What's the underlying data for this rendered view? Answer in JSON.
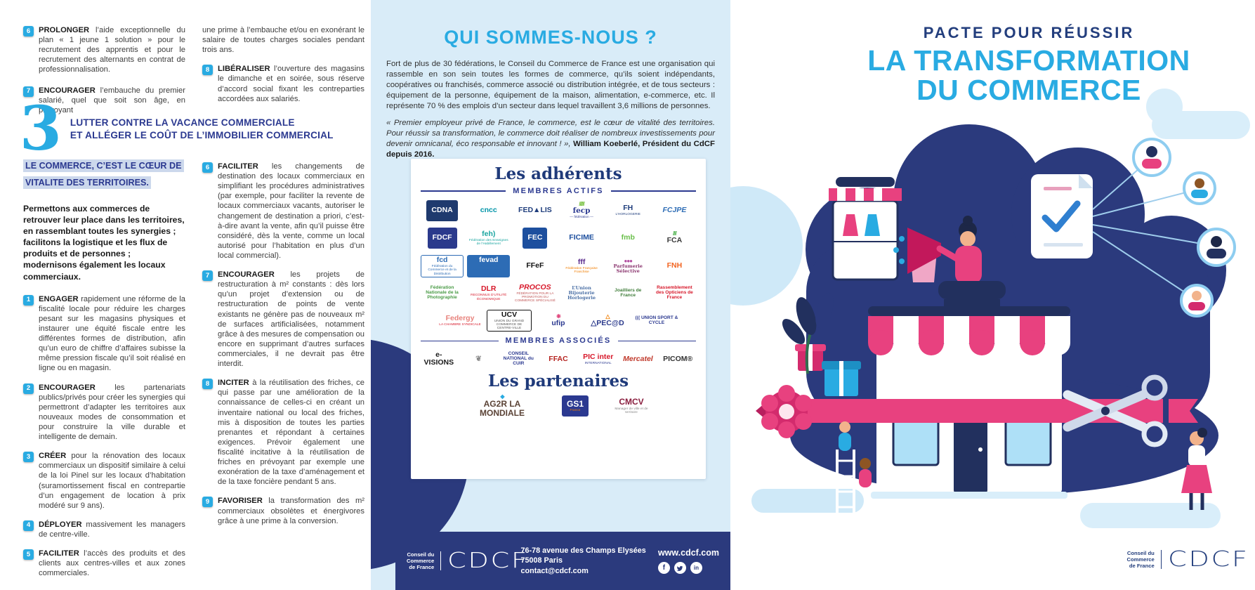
{
  "accent_colors": {
    "cyan": "#29abe2",
    "navy": "#2b3a7d",
    "heading_blue": "#2b3990",
    "pink": "#e8417f",
    "panel_blue": "#d9ecf8"
  },
  "brand": {
    "l1": "Conseil du",
    "l2": "Commerce",
    "l3": "de France",
    "name": "CDCF"
  },
  "left_panel": {
    "items_top_col1": [
      {
        "num": "6",
        "kw": "PROLONGER",
        "text": "l’aide exceptionnelle du plan « 1 jeune 1 solution » pour le recrutement des apprentis et pour le recrutement des alternants en contrat de professionnalisation."
      },
      {
        "num": "7",
        "kw": "ENCOURAGER",
        "text": "l’embauche du premier salarié, quel que soit son âge, en prévoyant"
      }
    ],
    "items_top_col2": [
      {
        "num": "",
        "kw": "",
        "text": "une prime à l’embauche et/ou en exonérant le salaire de toutes charges sociales pendant trois ans."
      },
      {
        "num": "8",
        "kw": "LIBÉRALISER",
        "text": "l’ouverture des magasins le dimanche et en soirée, sous réserve d’accord social fixant les contreparties accordées aux salariés."
      }
    ],
    "section": {
      "number": "3",
      "title1": "LUTTER CONTRE LA VACANCE COMMERCIALE",
      "title2": "ET ALLÉGER LE COÛT DE L’IMMOBILIER COMMERCIAL"
    },
    "highlight": "LE COMMERCE, C’EST LE CŒUR DE VITALITE DES TERRITOIRES.",
    "intro": "Permettons aux commerces de retrouver leur place dans les territoires, en rassemblant toutes les synergies ; facilitons la logistique et les flux de produits et de personnes ; modernisons également les locaux commerciaux.",
    "items_left": [
      {
        "num": "1",
        "kw": "ENGAGER",
        "text": "rapidement une réforme de la fiscalité locale pour réduire les charges pesant sur les magasins physiques et instaurer une équité fiscale entre les différentes formes de distribution, afin qu’un euro de chiffre d’affaires subisse la même pression fiscale qu’il soit réalisé en ligne ou en magasin."
      },
      {
        "num": "2",
        "kw": "ENCOURAGER",
        "text": "les partenariats publics/privés pour créer les synergies qui permettront d’adapter les territoires aux nouveaux modes de consommation et pour construire la ville durable et intelligente de demain."
      },
      {
        "num": "3",
        "kw": "CRÉER",
        "text": "pour la rénovation des locaux commerciaux un dispositif similaire à celui de la loi Pinel sur les locaux d’habitation (suramortissement fiscal en contrepartie d’un engagement de location à prix modéré sur 9 ans)."
      },
      {
        "num": "4",
        "kw": "DÉPLOYER",
        "text": "massivement les managers de centre-ville."
      },
      {
        "num": "5",
        "kw": "FACILITER",
        "text": "l’accès des produits et des clients aux centres-villes et aux zones commerciales."
      }
    ],
    "items_right": [
      {
        "num": "6",
        "kw": "FACILITER",
        "text": "les changements de destination des locaux commerciaux en simplifiant les procédures administratives (par exemple, pour faciliter la revente de locaux commerciaux vacants, autoriser le changement de destination a priori, c’est-à-dire avant la vente, afin qu’il puisse être considéré, dès la vente, comme un local autorisé pour l’habitation en plus d’un local commercial)."
      },
      {
        "num": "7",
        "kw": "ENCOURAGER",
        "text": "les projets de restructuration à m² constants : dès lors qu’un projet d’extension ou de restructuration de points de vente existants ne génère pas de nouveaux m² de surfaces artificialisées, notamment grâce à des mesures de compensation ou encore en supprimant d’autres surfaces commerciales, il ne devrait pas être interdit."
      },
      {
        "num": "8",
        "kw": "INCITER",
        "text": "à la réutilisation des friches, ce qui passe par une amélioration de la connaissance de celles-ci en créant un inventaire national ou local des friches, mis à disposition de toutes les parties prenantes et répondant à certaines exigences. Prévoir également une fiscalité incitative à la réutilisation de friches en prévoyant par exemple une exonération de la taxe d’aménagement et de la taxe foncière pendant 5 ans."
      },
      {
        "num": "9",
        "kw": "FAVORISER",
        "text": "la transformation des m² commerciaux obsolètes et énergivores grâce à une prime à la conversion."
      }
    ]
  },
  "middle_panel": {
    "title": "QUI SOMMES-NOUS ?",
    "para1": "Fort de plus de 30 fédérations, le Conseil du Commerce de France est une organisation qui rassemble en son sein toutes les formes de commerce, qu’ils soient indépendants, coopératives ou franchisés, commerce associé ou distribution intégrée, et de tous secteurs : équipement de la personne, équipement de la maison, alimentation, e-commerce, etc. Il représente 70 % des emplois d’un secteur dans lequel travaillent 3,6 millions de personnes.",
    "quote": "« Premier employeur privé de France, le commerce, est le cœur de vitalité des territoires. Pour réussir sa transformation, le commerce doit réaliser de nombreux investissements pour devenir omnicanal, éco responsable et innovant ! », ",
    "quote_author": "William Koeberlé, Président du CdCF depuis 2016.",
    "adherents_title": "Les adhérents",
    "actifs_label": "MEMBRES ACTIFS",
    "actifs_rows": [
      [
        {
          "t": "CDNA",
          "bg": "#1f3a6e"
        },
        {
          "t": "cncc",
          "c": "#0094a8"
        },
        {
          "t": "FED▲LIS",
          "c": "#1f3d7c"
        },
        {
          "t": "fecp",
          "c": "#2b3990",
          "serif": true,
          "top": "//////",
          "tc": "#7ac143",
          "sub": "— fédération —",
          "sc": "#2b3990"
        },
        {
          "t": "FH",
          "c": "#1f3d7c",
          "sub": "L’HORLOGERIE",
          "sc": "#1f3d7c"
        },
        {
          "t": "FCJPE",
          "c": "#2d6cb5",
          "i": true
        }
      ],
      [
        {
          "t": "FDCF",
          "bg": "#2b3a8c"
        },
        {
          "t": "feh)",
          "c": "#1aa5a0",
          "sub": "Fédération des Enseignes de l’Habillement",
          "sc": "#1aa5a0"
        },
        {
          "t": "FEC",
          "bg": "#1d4f9e"
        },
        {
          "t": "FICIME",
          "c": "#1d4f9e"
        },
        {
          "t": "fmb",
          "c": "#6abf4b"
        },
        {
          "t": "FCA",
          "c": "#3a3a3a",
          "top": "////",
          "tc": "#5cb85c"
        }
      ],
      [
        {
          "t": "fcd",
          "c": "#2d6cb5",
          "box": true,
          "sub": "Fédération du Commerce et de la Distribution",
          "sc": "#2d6cb5"
        },
        {
          "t": "fevad",
          "bg": "#2d6cb5",
          "sub": "Fédération e-commerce et vente à distance",
          "sc": "#2d6cb5"
        },
        {
          "t": "FFeF",
          "c": "#111111"
        },
        {
          "t": "fff",
          "c": "#5b2d8e",
          "sub": "Fédération Française Franchise",
          "sc": "#f07d00"
        },
        {
          "t": "Parfumerie Sélective",
          "c": "#8a356e",
          "serif": true,
          "sm": true,
          "top": "●●●",
          "tc": "#b44fa0"
        },
        {
          "t": "FNH",
          "c": "#f26522"
        }
      ],
      [
        {
          "t": "Fédération Nationale de la Photographie",
          "c": "#4a9b46",
          "sm": true
        },
        {
          "t": "DLR",
          "c": "#d7182a",
          "sub": "RECONNUS D’UTILITÉ ÉCONOMIQUE",
          "sc": "#d7182a"
        },
        {
          "t": "PROCOS",
          "c": "#d7182a",
          "i": true,
          "sub": "FÉDÉRATION POUR LA PROMOTION DU COMMERCE SPÉCIALISÉ",
          "sc": "#c05555"
        },
        {
          "t": "L’Union Bijouterie Horlogerie",
          "c": "#4a6fa5",
          "serif": true,
          "sm": true
        },
        {
          "t": "Joailliers de France",
          "c": "#3f7d3a",
          "sm": true
        },
        {
          "t": "Rassemblement des Opticiens de France",
          "c": "#d7182a",
          "sm": true
        }
      ],
      [
        {
          "t": "Federgy",
          "c": "#e8837d",
          "sub": "LA CHAMBRE SYNDICALE",
          "sc": "#d7182a"
        },
        {
          "t": "UCV",
          "c": "#111111",
          "box": true,
          "sub": "UNION DU GRAND COMMERCE DE CENTRE-VILLE",
          "sc": "#555555"
        },
        {
          "t": "ufip",
          "c": "#2b3990",
          "top": "❋",
          "tc": "#e0457b"
        },
        {
          "t": "△PEC@D",
          "c": "#2b3a8c",
          "top": "△",
          "tc": "#f07d00"
        },
        {
          "t": "((( UNION SPORT & CYCLE",
          "c": "#2b3990",
          "sm": true
        }
      ]
    ],
    "associes_label": "MEMBRES ASSOCIÉS",
    "associes_row": [
      {
        "t": "e-VISIONS",
        "c": "#1a1a1a"
      },
      {
        "t": "❦",
        "c": "#8a8a8a"
      },
      {
        "t": "CONSEIL NATIONAL du CUIR",
        "c": "#2b3990",
        "sm": true
      },
      {
        "t": "FFAC",
        "c": "#b5231f"
      },
      {
        "t": "PIC inter",
        "c": "#d7182a",
        "sub": "INTERNATIONAL",
        "sc": "#2b3990"
      },
      {
        "t": "Mercatel",
        "c": "#c0392b",
        "i": true
      },
      {
        "t": "PICOM®",
        "c": "#333333"
      }
    ],
    "partenaires_title": "Les partenaires",
    "partenaires_row": [
      {
        "t": "AG2R LA MONDIALE",
        "c": "#5b4336",
        "top": "◆",
        "tc": "#29abe2"
      },
      {
        "t": "GS1",
        "bg": "#2b3990",
        "sub": "France",
        "sc": "#f07d00"
      },
      {
        "t": "CMCV",
        "c": "#8a1f3f",
        "sub": "Manager de ville et de territoire",
        "sc": "#888888"
      }
    ],
    "footer": {
      "address1": "76-78 avenue des Champs Elysées",
      "address2": "75008 Paris",
      "address3": "contact@cdcf.com",
      "website": "www.cdcf.com",
      "social": [
        "facebook",
        "twitter",
        "linkedin"
      ]
    }
  },
  "right_panel": {
    "title1": "PACTE POUR RÉUSSIR",
    "title2": "LA TRANSFORMATION",
    "title3": "DU COMMERCE"
  }
}
